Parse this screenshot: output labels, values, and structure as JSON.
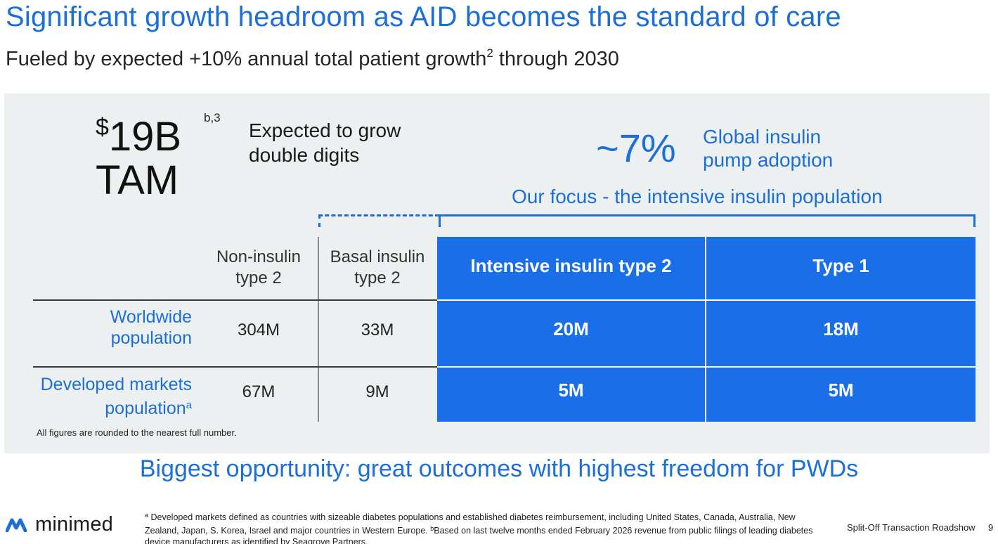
{
  "title": "Significant growth headroom as AID becomes the standard of care",
  "subtitle": {
    "text": "Fueled by expected +10% annual total patient growth",
    "sup": "2",
    "suffix": " through 2030"
  },
  "tam": {
    "dollar": "$",
    "value": "19B",
    "sup": "b,3",
    "label": "TAM",
    "growth_line1": "Expected to grow",
    "growth_line2": "double digits"
  },
  "adoption": {
    "value": "~7%",
    "label_line1": "Global insulin",
    "label_line2": "pump adoption"
  },
  "focus_label": "Our focus - the intensive insulin population",
  "table": {
    "columns": [
      {
        "line1": "Non-insulin",
        "line2": "type 2"
      },
      {
        "line1": "Basal insulin",
        "line2": "type 2"
      },
      {
        "label": "Intensive insulin type 2"
      },
      {
        "label": "Type 1"
      }
    ],
    "rows": [
      {
        "label_line1": "Worldwide",
        "label_line2": "population",
        "label_sup": "",
        "values": [
          "304M",
          "33M",
          "20M",
          "18M"
        ]
      },
      {
        "label_line1": "Developed markets",
        "label_line2": "population",
        "label_sup": "a",
        "values": [
          "67M",
          "9M",
          "5M",
          "5M"
        ]
      }
    ]
  },
  "rounded_note": "All figures are rounded to the nearest full number.",
  "bottom_headline": "Biggest opportunity: great outcomes with highest freedom for PWDs",
  "logo_text": "minimed",
  "footnote": {
    "sup_a": "a",
    "text_a": " Developed markets defined as countries with sizeable diabetes populations and established diabetes reimbursement, including United States, Canada, Australia, New Zealand, Japan, S. Korea, Israel and major countries in Western Europe. ",
    "sup_b": "b",
    "text_b": "Based on last twelve months ended February 2026 revenue from public filings of leading diabetes device manufacturers as identified by Seagrove Partners."
  },
  "roadshow": "Split-Off Transaction Roadshow",
  "page_number": "9",
  "colors": {
    "accent": "#1b6fd6",
    "focus_block": "#1a6fe8",
    "panel": "#edf0f1"
  }
}
